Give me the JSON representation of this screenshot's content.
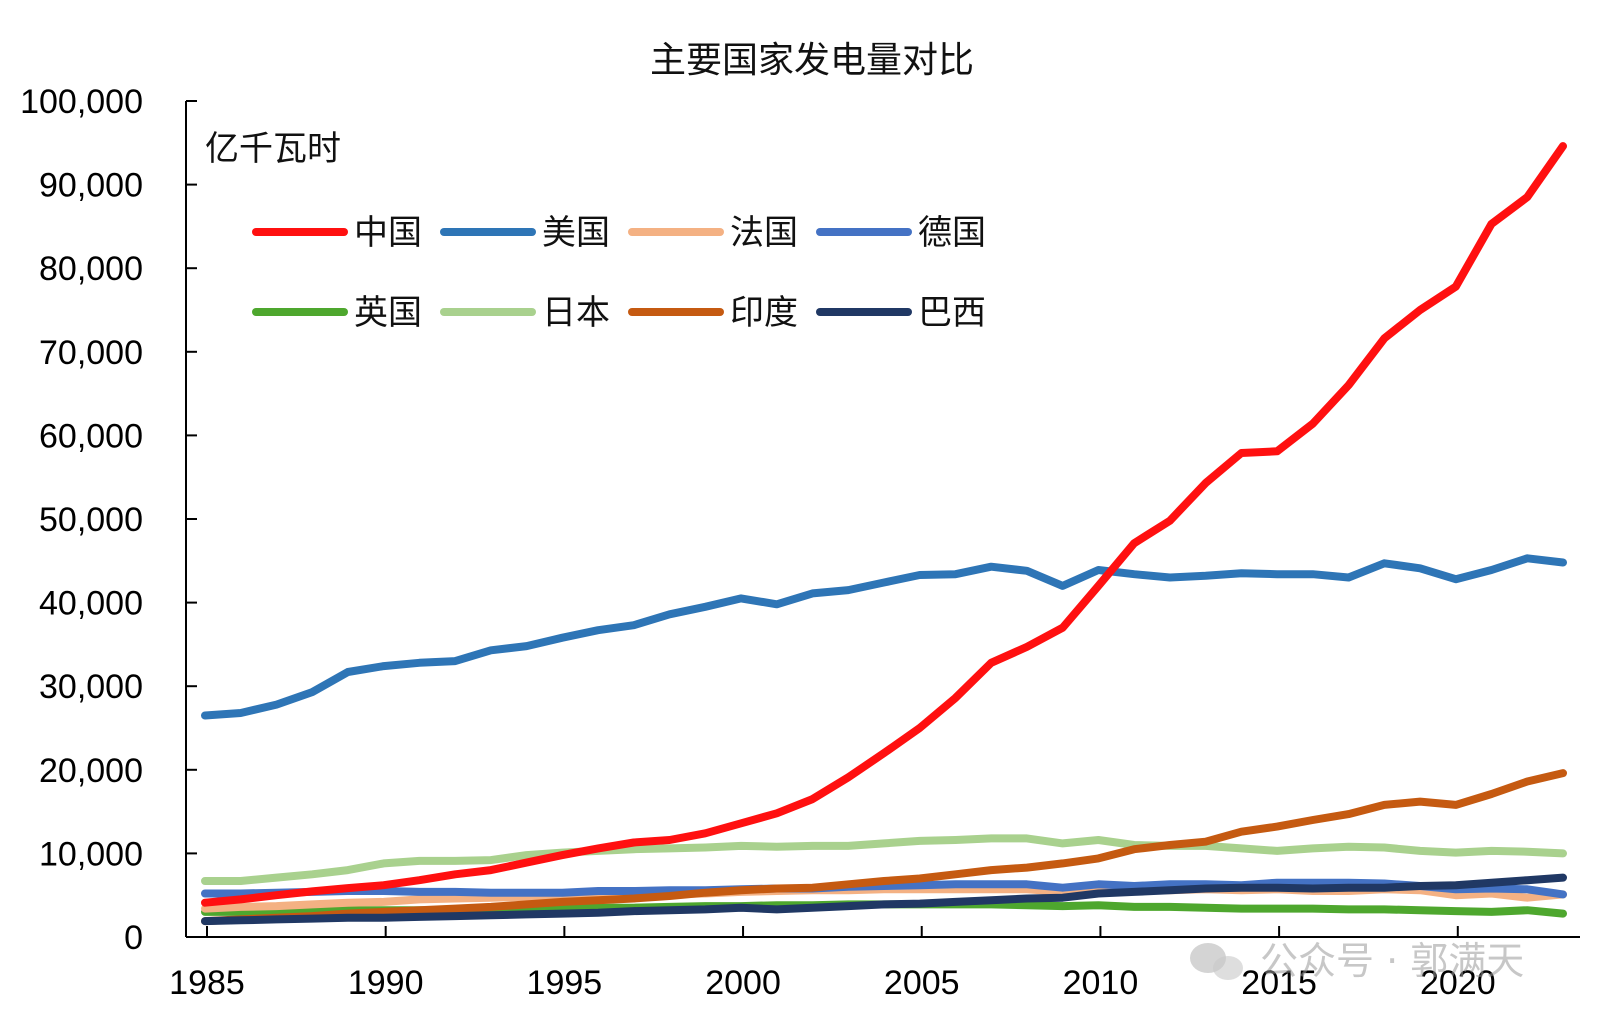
{
  "chart_data": {
    "type": "line",
    "title": "主要国家发电量对比",
    "ylabel": "亿千瓦时",
    "xlabel": "",
    "ylim": [
      0,
      100000
    ],
    "xlim": [
      1985,
      2023
    ],
    "yticks": [
      0,
      10000,
      20000,
      30000,
      40000,
      50000,
      60000,
      70000,
      80000,
      90000,
      100000
    ],
    "ytick_labels": [
      "0",
      "10,000",
      "20,000",
      "30,000",
      "40,000",
      "50,000",
      "60,000",
      "70,000",
      "80,000",
      "90,000",
      "100,000"
    ],
    "xticks": [
      1985,
      1990,
      1995,
      2000,
      2005,
      2010,
      2015,
      2020
    ],
    "xtick_labels": [
      "1985",
      "1990",
      "1995",
      "2000",
      "2005",
      "2010",
      "2015",
      "2020"
    ],
    "grid": false,
    "legend_position": "top-left",
    "x": [
      1985,
      1986,
      1987,
      1988,
      1989,
      1990,
      1991,
      1992,
      1993,
      1994,
      1995,
      1996,
      1997,
      1998,
      1999,
      2000,
      2001,
      2002,
      2003,
      2004,
      2005,
      2006,
      2007,
      2008,
      2009,
      2010,
      2011,
      2012,
      2013,
      2014,
      2015,
      2016,
      2017,
      2018,
      2019,
      2020,
      2021,
      2022,
      2023
    ],
    "series": [
      {
        "name": "中国",
        "color": "#ff1010",
        "values": [
          4100,
          4500,
          5000,
          5450,
          5850,
          6200,
          6800,
          7500,
          8000,
          8900,
          9800,
          10600,
          11300,
          11600,
          12400,
          13600,
          14800,
          16500,
          19100,
          22000,
          25000,
          28600,
          32800,
          34700,
          37000,
          42000,
          47100,
          49800,
          54300,
          57900,
          58100,
          61400,
          66000,
          71600,
          75000,
          77800,
          85300,
          88500,
          94600
        ]
      },
      {
        "name": "美国",
        "color": "#2e75b6",
        "values": [
          26500,
          26800,
          27800,
          29300,
          31700,
          32400,
          32800,
          33000,
          34300,
          34800,
          35800,
          36700,
          37300,
          38600,
          39500,
          40500,
          39800,
          41100,
          41500,
          42400,
          43300,
          43400,
          44300,
          43800,
          42000,
          43900,
          43400,
          43000,
          43200,
          43500,
          43400,
          43400,
          43000,
          44700,
          44100,
          42800,
          43900,
          45300,
          44800
        ]
      },
      {
        "name": "法国",
        "color": "#f4b183",
        "values": [
          3400,
          3600,
          3700,
          3900,
          4100,
          4200,
          4500,
          4600,
          4700,
          4800,
          4900,
          5100,
          5100,
          5100,
          5200,
          5400,
          5500,
          5600,
          5600,
          5700,
          5700,
          5700,
          5700,
          5700,
          5400,
          5700,
          5600,
          5600,
          5700,
          5600,
          5700,
          5500,
          5500,
          5700,
          5600,
          5000,
          5200,
          4700,
          5100
        ]
      },
      {
        "name": "德国",
        "color": "#4472c4",
        "values": [
          5200,
          5200,
          5300,
          5400,
          5500,
          5500,
          5400,
          5400,
          5300,
          5300,
          5300,
          5500,
          5500,
          5600,
          5600,
          5700,
          5800,
          5800,
          6000,
          6100,
          6200,
          6300,
          6300,
          6300,
          5900,
          6300,
          6100,
          6300,
          6300,
          6200,
          6500,
          6500,
          6500,
          6400,
          6100,
          5700,
          5800,
          5700,
          5100
        ]
      },
      {
        "name": "英国",
        "color": "#4ea72e",
        "values": [
          3000,
          3000,
          3000,
          3100,
          3200,
          3200,
          3200,
          3200,
          3200,
          3200,
          3300,
          3500,
          3500,
          3600,
          3700,
          3700,
          3800,
          3800,
          3900,
          3900,
          3900,
          3900,
          3900,
          3800,
          3700,
          3800,
          3600,
          3600,
          3500,
          3400,
          3400,
          3400,
          3300,
          3300,
          3200,
          3100,
          3000,
          3200,
          2800
        ]
      },
      {
        "name": "日本",
        "color": "#a9d18e",
        "values": [
          6700,
          6700,
          7100,
          7500,
          8000,
          8800,
          9100,
          9100,
          9200,
          9800,
          10100,
          10300,
          10500,
          10600,
          10700,
          10900,
          10800,
          10900,
          10900,
          11200,
          11500,
          11600,
          11800,
          11800,
          11200,
          11600,
          11000,
          10900,
          10900,
          10600,
          10300,
          10600,
          10800,
          10700,
          10300,
          10100,
          10300,
          10200,
          10000
        ]
      },
      {
        "name": "印度",
        "color": "#c55a11",
        "values": [
          1900,
          2100,
          2300,
          2500,
          2800,
          3000,
          3200,
          3400,
          3600,
          3900,
          4200,
          4400,
          4600,
          4900,
          5300,
          5600,
          5800,
          5900,
          6300,
          6700,
          7000,
          7500,
          8000,
          8300,
          8800,
          9400,
          10500,
          11000,
          11400,
          12600,
          13200,
          14000,
          14700,
          15800,
          16200,
          15800,
          17100,
          18600,
          19600
        ]
      },
      {
        "name": "巴西",
        "color": "#203864",
        "values": [
          1900,
          2000,
          2100,
          2200,
          2300,
          2300,
          2400,
          2500,
          2600,
          2700,
          2800,
          2900,
          3100,
          3200,
          3300,
          3500,
          3300,
          3500,
          3700,
          3900,
          4000,
          4200,
          4400,
          4600,
          4700,
          5200,
          5400,
          5600,
          5800,
          5900,
          5900,
          5800,
          5900,
          5900,
          6100,
          6200,
          6500,
          6800,
          7100
        ]
      }
    ]
  },
  "watermark": {
    "text": "公众号 · 郭满天",
    "icon": "wechat-icon"
  }
}
